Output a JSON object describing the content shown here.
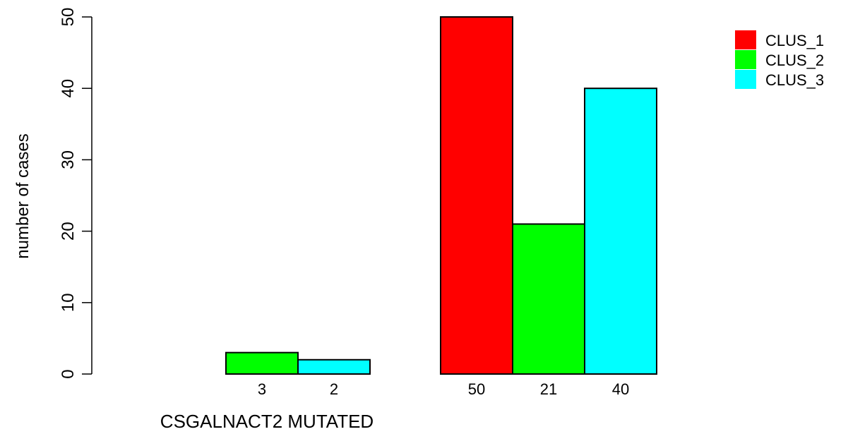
{
  "chart_data": {
    "type": "bar",
    "title": "",
    "xlabel": "CSGALNACT2 MUTATED",
    "ylabel": "number of cases",
    "ylim": [
      0,
      50
    ],
    "yticks": [
      0,
      10,
      20,
      30,
      40,
      50
    ],
    "grid": false,
    "legend_position": "top-right",
    "groups": [
      "",
      ""
    ],
    "series": [
      {
        "name": "CLUS_1",
        "color": "#ff0000",
        "values": [
          0,
          50
        ],
        "labels": [
          "",
          "50"
        ]
      },
      {
        "name": "CLUS_2",
        "color": "#00ff00",
        "values": [
          3,
          21
        ],
        "labels": [
          "3",
          "21"
        ]
      },
      {
        "name": "CLUS_3",
        "color": "#00ffff",
        "values": [
          2,
          40
        ],
        "labels": [
          "2",
          "40"
        ]
      }
    ]
  }
}
